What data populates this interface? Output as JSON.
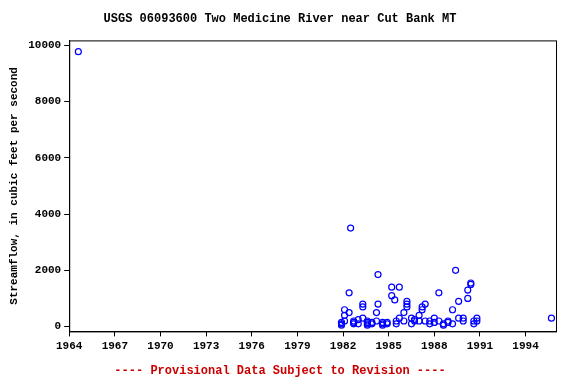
{
  "chart_data": {
    "type": "scatter",
    "title": "USGS 06093600 Two Medicine River near Cut Bank MT",
    "y_label": "Streamflow, in cubic feet per second",
    "footer": "---- Provisional Data Subject to Revision ----",
    "color": "#0000ff",
    "marker": "circle",
    "grid": false,
    "x": [
      1964.6,
      1981.9,
      1981.9,
      1981.9,
      1982.1,
      1982.1,
      1982.1,
      1982.4,
      1982.4,
      1982.5,
      1982.7,
      1982.7,
      1982.7,
      1983.0,
      1983.0,
      1983.3,
      1983.3,
      1983.3,
      1983.6,
      1983.6,
      1983.6,
      1983.6,
      1983.9,
      1983.9,
      1984.2,
      1984.2,
      1984.3,
      1984.3,
      1984.6,
      1984.6,
      1984.6,
      1984.9,
      1984.9,
      1985.2,
      1985.2,
      1985.4,
      1985.5,
      1985.5,
      1985.7,
      1985.7,
      1986.0,
      1986.0,
      1986.2,
      1986.2,
      1986.2,
      1986.5,
      1986.5,
      1986.7,
      1986.7,
      1987.0,
      1987.0,
      1987.2,
      1987.2,
      1987.4,
      1987.4,
      1987.7,
      1987.7,
      1988.0,
      1988.0,
      1988.3,
      1988.3,
      1988.6,
      1988.6,
      1988.9,
      1988.9,
      1989.2,
      1989.2,
      1989.4,
      1989.6,
      1989.6,
      1989.9,
      1989.9,
      1990.2,
      1990.2,
      1990.4,
      1990.4,
      1990.6,
      1990.6,
      1990.8,
      1990.8,
      1995.7
    ],
    "values": [
      9770,
      100,
      50,
      150,
      600,
      200,
      400,
      1200,
      500,
      3500,
      100,
      150,
      200,
      250,
      100,
      300,
      800,
      700,
      100,
      50,
      150,
      200,
      100,
      150,
      500,
      200,
      1850,
      800,
      100,
      50,
      150,
      150,
      100,
      1100,
      1400,
      950,
      200,
      100,
      1400,
      300,
      500,
      200,
      700,
      900,
      800,
      300,
      100,
      250,
      200,
      200,
      400,
      700,
      600,
      800,
      200,
      100,
      200,
      300,
      150,
      1200,
      200,
      100,
      50,
      150,
      200,
      600,
      100,
      2000,
      900,
      300,
      200,
      300,
      1000,
      1300,
      1500,
      1550,
      200,
      100,
      300,
      200,
      300
    ],
    "xlim": [
      1964,
      1996
    ],
    "xticks": [
      1964,
      1967,
      1970,
      1973,
      1976,
      1979,
      1982,
      1985,
      1988,
      1991,
      1994
    ],
    "ylim": [
      -170,
      10170
    ],
    "yticks": [
      0,
      2000,
      4000,
      6000,
      8000,
      10000
    ]
  }
}
